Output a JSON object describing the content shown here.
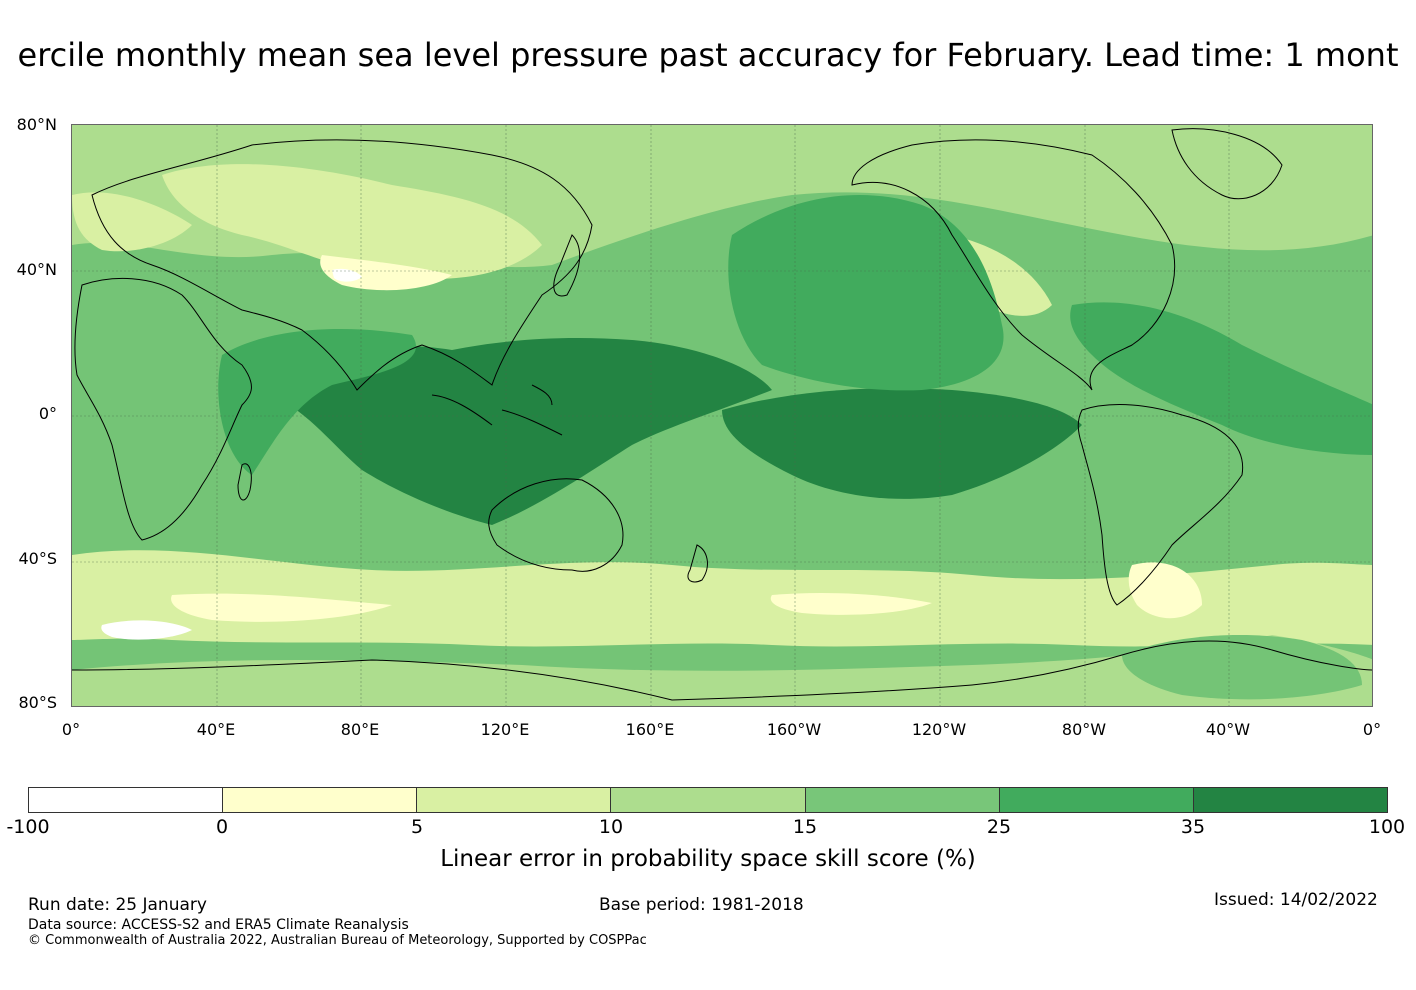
{
  "title": "ercile monthly mean sea level pressure past accuracy for February. Lead time: 1 mont",
  "map": {
    "lat_labels": [
      "80°N",
      "40°N",
      "0°",
      "40°S",
      "80°S"
    ],
    "lon_labels": [
      "0°",
      "40°E",
      "80°E",
      "120°E",
      "160°E",
      "160°W",
      "120°W",
      "80°W",
      "40°W",
      "0°"
    ],
    "colors": {
      "ocean_base": "#74c476",
      "high_skill": "#41ab5d",
      "very_high_skill": "#238443",
      "mid_skill": "#addd8e",
      "low_skill": "#d9f0a3",
      "very_low_skill": "#ffffcc",
      "negative": "#ffffff",
      "coastline": "#000000",
      "gridline": "#4a6b4a"
    }
  },
  "colorbar": {
    "ticks": [
      "-100",
      "0",
      "5",
      "10",
      "15",
      "25",
      "35",
      "100"
    ],
    "colors": [
      "#ffffff",
      "#ffffcc",
      "#d9f0a3",
      "#addd8e",
      "#78c679",
      "#41ab5d",
      "#238443"
    ],
    "label": "Linear error in probability space skill score (%)"
  },
  "footer": {
    "run_date": "Run date: 25 January",
    "base_period": "Base period: 1981-2018",
    "issued": "Issued: 14/02/2022",
    "data_source": "Data source: ACCESS-S2 and ERA5 Climate Reanalysis",
    "copyright": "© Commonwealth of Australia 2022, Australian Bureau of Meteorology, Supported by COSPPac"
  }
}
